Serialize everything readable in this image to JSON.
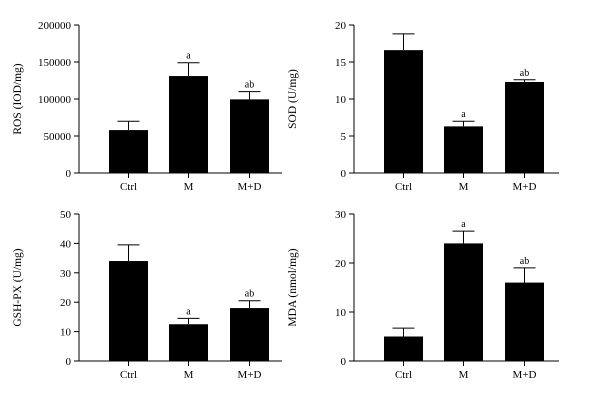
{
  "chart_data": [
    {
      "type": "bar",
      "categories": [
        "Ctrl",
        "M",
        "M+D"
      ],
      "values": [
        58000,
        131000,
        99500
      ],
      "errors": [
        12000,
        18000,
        10500
      ],
      "annotations": [
        "",
        "a",
        "ab"
      ],
      "ylabel": "ROS (IOD/mg)",
      "ylim": [
        0,
        200000
      ],
      "yticks": [
        0,
        50000,
        100000,
        150000,
        200000
      ],
      "ytick_labels": [
        "0",
        "50000",
        "100000",
        "150000",
        "200000"
      ],
      "bar_color": "#000000",
      "grid": false
    },
    {
      "type": "bar",
      "categories": [
        "Ctrl",
        "M",
        "M+D"
      ],
      "values": [
        16.6,
        6.3,
        12.3
      ],
      "errors": [
        2.2,
        0.7,
        0.3
      ],
      "annotations": [
        "",
        "a",
        "ab"
      ],
      "ylabel": "SOD (U/mg)",
      "ylim": [
        0,
        20
      ],
      "yticks": [
        0,
        5,
        10,
        15,
        20
      ],
      "ytick_labels": [
        "0",
        "5",
        "10",
        "15",
        "20"
      ],
      "bar_color": "#000000",
      "grid": false
    },
    {
      "type": "bar",
      "categories": [
        "Ctrl",
        "M",
        "M+D"
      ],
      "values": [
        34,
        12.5,
        18
      ],
      "errors": [
        5.5,
        2.0,
        2.5
      ],
      "annotations": [
        "",
        "a",
        "ab"
      ],
      "ylabel": "GSH-PX (U/mg)",
      "ylim": [
        0,
        50
      ],
      "yticks": [
        0,
        10,
        20,
        30,
        40,
        50
      ],
      "ytick_labels": [
        "0",
        "10",
        "20",
        "30",
        "40",
        "50"
      ],
      "bar_color": "#000000",
      "grid": false
    },
    {
      "type": "bar",
      "categories": [
        "Ctrl",
        "M",
        "M+D"
      ],
      "values": [
        5,
        24,
        16
      ],
      "errors": [
        1.7,
        2.5,
        3.0
      ],
      "annotations": [
        "",
        "a",
        "ab"
      ],
      "ylabel": "MDA (nmol/mg)",
      "ylim": [
        0,
        30
      ],
      "yticks": [
        0,
        10,
        20,
        30
      ],
      "ytick_labels": [
        "0",
        "10",
        "20",
        "30"
      ],
      "bar_color": "#000000",
      "grid": false
    }
  ]
}
